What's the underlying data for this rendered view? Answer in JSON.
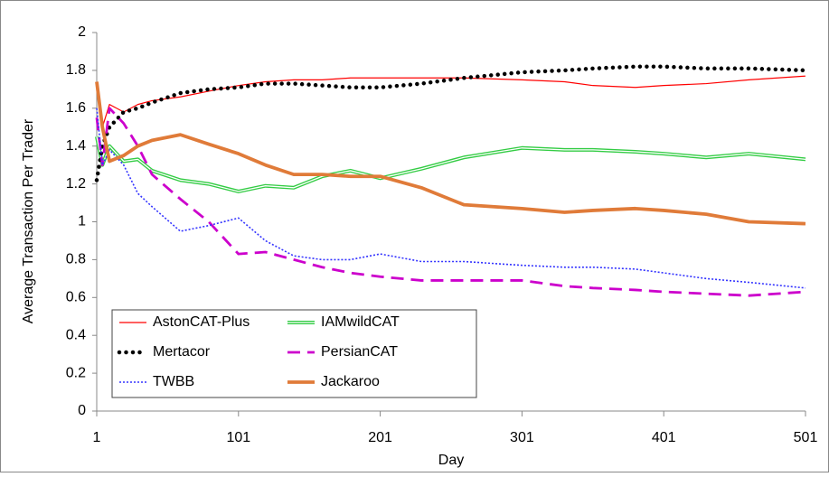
{
  "chart_data": {
    "type": "line",
    "x_label": "Day",
    "y_label": "Average Transaction Per Trader",
    "x": [
      1,
      5,
      10,
      20,
      30,
      40,
      60,
      80,
      101,
      120,
      140,
      160,
      180,
      201,
      230,
      260,
      301,
      331,
      351,
      381,
      401,
      431,
      461,
      501
    ],
    "xlim": [
      1,
      501
    ],
    "xticks": [
      1,
      101,
      201,
      301,
      401,
      501
    ],
    "ylim": [
      0,
      2
    ],
    "yticks": [
      0,
      0.2,
      0.4,
      0.6,
      0.8,
      1,
      1.2,
      1.4,
      1.6,
      1.8,
      2
    ],
    "grid": false,
    "legend": "lower left",
    "series": [
      {
        "name": "AstonCAT-Plus",
        "color": "#ff0000",
        "values": [
          1.72,
          1.5,
          1.62,
          1.58,
          1.62,
          1.64,
          1.66,
          1.69,
          1.72,
          1.74,
          1.75,
          1.75,
          1.76,
          1.76,
          1.76,
          1.76,
          1.75,
          1.74,
          1.72,
          1.71,
          1.72,
          1.73,
          1.75,
          1.77
        ]
      },
      {
        "name": "IAMwildCAT",
        "color": "#33cc44",
        "values": [
          1.45,
          1.3,
          1.4,
          1.32,
          1.33,
          1.27,
          1.22,
          1.2,
          1.16,
          1.19,
          1.18,
          1.24,
          1.27,
          1.23,
          1.28,
          1.34,
          1.39,
          1.38,
          1.38,
          1.37,
          1.36,
          1.34,
          1.36,
          1.33
        ]
      },
      {
        "name": "Mertacor",
        "color": "#000000",
        "values": [
          1.22,
          1.4,
          1.5,
          1.58,
          1.6,
          1.63,
          1.68,
          1.7,
          1.71,
          1.73,
          1.73,
          1.72,
          1.71,
          1.71,
          1.73,
          1.76,
          1.79,
          1.8,
          1.81,
          1.82,
          1.82,
          1.81,
          1.81,
          1.8
        ]
      },
      {
        "name": "PersianCAT",
        "color": "#cc00cc",
        "values": [
          1.55,
          1.3,
          1.6,
          1.52,
          1.4,
          1.25,
          1.12,
          1.0,
          0.83,
          0.84,
          0.8,
          0.76,
          0.73,
          0.71,
          0.69,
          0.69,
          0.69,
          0.66,
          0.65,
          0.64,
          0.63,
          0.62,
          0.61,
          0.63
        ]
      },
      {
        "name": "TWBB",
        "color": "#3333ff",
        "values": [
          1.6,
          1.3,
          1.38,
          1.3,
          1.15,
          1.08,
          0.95,
          0.98,
          1.02,
          0.9,
          0.82,
          0.8,
          0.8,
          0.83,
          0.79,
          0.79,
          0.77,
          0.76,
          0.76,
          0.75,
          0.73,
          0.7,
          0.68,
          0.65
        ]
      },
      {
        "name": "Jackaroo",
        "color": "#e07b39",
        "values": [
          1.74,
          1.5,
          1.32,
          1.35,
          1.4,
          1.43,
          1.46,
          1.41,
          1.36,
          1.3,
          1.25,
          1.25,
          1.24,
          1.24,
          1.18,
          1.09,
          1.07,
          1.05,
          1.06,
          1.07,
          1.06,
          1.04,
          1.0,
          0.99
        ]
      }
    ]
  }
}
